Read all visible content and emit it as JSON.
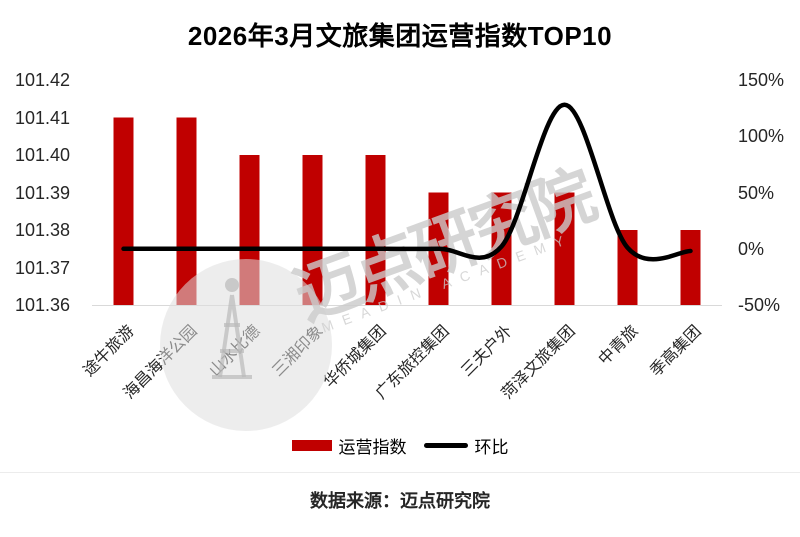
{
  "title": "2026年3月文旅集团运营指数TOP10",
  "legend": {
    "bar_label": "运营指数",
    "line_label": "环比"
  },
  "footer": {
    "source": "数据来源：迈点研究院"
  },
  "watermark": {
    "cn": "迈点研究院",
    "latin": "MEADIN ACADEMY"
  },
  "colors": {
    "bar": "#c00000",
    "line": "#000000",
    "axis_line": "#d9d9d9",
    "text": "#262626"
  },
  "chart_data": {
    "type": "bar",
    "subtype": "combo bar+line, dual axis",
    "title": "2026年3月文旅集团运营指数TOP10",
    "categories": [
      "途牛旅游",
      "海昌海洋公园",
      "山水比德",
      "三湘印象",
      "华侨城集团",
      "广东旅控集团",
      "三夫户外",
      "菏泽文旅集团",
      "中青旅",
      "季高集团"
    ],
    "series": [
      {
        "name": "运营指数",
        "type": "bar",
        "axis": "left",
        "values": [
          101.41,
          101.41,
          101.4,
          101.4,
          101.4,
          101.39,
          101.39,
          101.39,
          101.38,
          101.38
        ]
      },
      {
        "name": "环比",
        "type": "line",
        "axis": "right",
        "unit": "%",
        "values": [
          0,
          0,
          0,
          0,
          0,
          0,
          2,
          128,
          1,
          -2
        ]
      }
    ],
    "left_axis": {
      "min": 101.36,
      "max": 101.42,
      "ticks": [
        "101.42",
        "101.41",
        "101.40",
        "101.39",
        "101.38",
        "101.37",
        "101.36"
      ]
    },
    "right_axis": {
      "min": -50,
      "max": 150,
      "ticks": [
        "150%",
        "100%",
        "50%",
        "0%",
        "-50%"
      ]
    },
    "grid": false,
    "legend_position": "bottom",
    "smoothed_line": true
  }
}
